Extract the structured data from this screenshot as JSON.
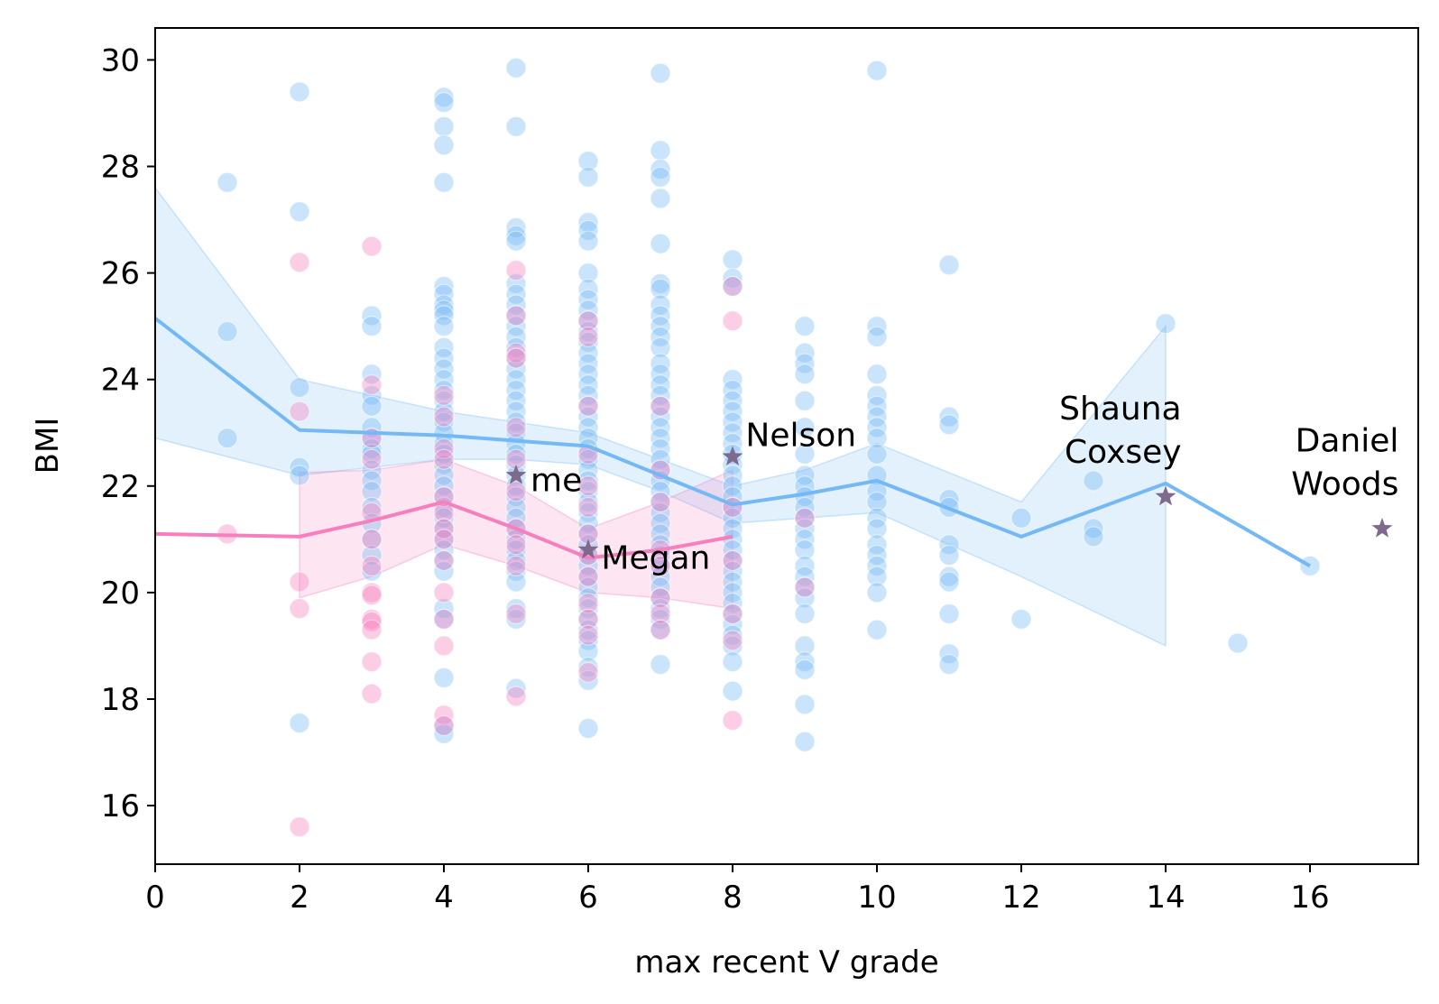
{
  "chart_data": {
    "type": "scatter",
    "xlabel": "max recent V grade",
    "ylabel": "BMI",
    "xlim": [
      0,
      17.5
    ],
    "ylim": [
      14.9,
      30.6
    ],
    "xticks": [
      0,
      2,
      4,
      6,
      8,
      10,
      12,
      14,
      16
    ],
    "yticks": [
      16,
      18,
      20,
      22,
      24,
      26,
      28,
      30
    ],
    "grid": false,
    "legend": "none",
    "colors": {
      "blue_series": "#74b9f5",
      "pink_series": "#f77fbd",
      "highlight_star": "#7e6a8c",
      "axis": "#000000"
    },
    "series": [
      {
        "color": "#74b9f5",
        "points": [
          {
            "x": 1,
            "y": [
              27.7,
              24.9,
              22.9
            ]
          },
          {
            "x": 2,
            "y": [
              29.4,
              27.15,
              23.85,
              22.35,
              22.2,
              17.55
            ]
          },
          {
            "x": 3,
            "y": [
              25.2,
              25.0,
              24.1,
              23.7,
              23.5,
              23.1,
              22.9,
              22.7,
              22.6,
              22.3,
              22.1,
              21.9,
              21.6,
              21.3,
              21.0,
              20.7,
              20.4
            ]
          },
          {
            "x": 4,
            "y": [
              29.3,
              29.2,
              28.75,
              28.4,
              27.7,
              25.75,
              25.6,
              25.4,
              25.3,
              25.2,
              25.0,
              24.6,
              24.4,
              24.2,
              24.0,
              23.8,
              23.6,
              23.4,
              23.2,
              23.0,
              22.8,
              22.6,
              22.4,
              22.2,
              22.0,
              21.8,
              21.6,
              21.4,
              21.2,
              21.0,
              20.8,
              20.6,
              20.4,
              19.7,
              19.5,
              18.4,
              17.5,
              17.35
            ]
          },
          {
            "x": 5,
            "y": [
              29.85,
              28.75,
              26.85,
              26.7,
              26.6,
              25.8,
              25.6,
              25.4,
              25.2,
              25.0,
              24.8,
              24.6,
              24.4,
              24.2,
              24.0,
              23.8,
              23.6,
              23.4,
              23.2,
              23.0,
              22.8,
              22.6,
              22.4,
              22.2,
              22.0,
              21.8,
              21.6,
              21.4,
              21.2,
              21.0,
              20.8,
              20.6,
              20.4,
              20.2,
              19.7,
              19.5,
              18.2
            ]
          },
          {
            "x": 6,
            "y": [
              28.1,
              27.8,
              26.95,
              26.8,
              26.6,
              26.0,
              25.7,
              25.5,
              25.3,
              25.1,
              24.9,
              24.7,
              24.5,
              24.3,
              24.1,
              23.9,
              23.7,
              23.5,
              23.3,
              23.1,
              22.9,
              22.7,
              22.5,
              22.3,
              22.1,
              21.9,
              21.7,
              21.5,
              21.3,
              21.1,
              20.9,
              20.7,
              20.5,
              20.3,
              20.1,
              19.9,
              19.7,
              19.5,
              19.3,
              19.1,
              18.9,
              18.6,
              18.35,
              17.45
            ]
          },
          {
            "x": 7,
            "y": [
              29.75,
              28.3,
              27.95,
              27.8,
              27.4,
              26.55,
              25.8,
              25.7,
              25.4,
              25.2,
              25.0,
              24.8,
              24.6,
              24.3,
              24.1,
              23.9,
              23.7,
              23.5,
              23.3,
              23.1,
              22.9,
              22.7,
              22.5,
              22.3,
              22.1,
              21.9,
              21.7,
              21.5,
              21.3,
              21.1,
              20.9,
              20.7,
              20.5,
              20.3,
              20.1,
              19.9,
              19.7,
              19.5,
              19.3,
              18.65
            ]
          },
          {
            "x": 8,
            "y": [
              26.25,
              25.9,
              25.75,
              24.0,
              23.8,
              23.6,
              23.4,
              23.2,
              23.0,
              22.8,
              22.6,
              22.4,
              22.2,
              22.0,
              21.8,
              21.6,
              21.4,
              21.2,
              21.0,
              20.8,
              20.6,
              20.4,
              20.2,
              20.0,
              19.8,
              19.6,
              19.4,
              19.2,
              19.0,
              18.7,
              18.15
            ]
          },
          {
            "x": 9,
            "y": [
              25.0,
              24.5,
              24.3,
              24.1,
              23.6,
              23.1,
              22.6,
              22.2,
              22.0,
              21.8,
              21.6,
              21.4,
              21.2,
              21.0,
              20.8,
              20.5,
              20.3,
              20.1,
              19.9,
              19.6,
              19.0,
              18.7,
              18.55,
              17.9,
              17.2
            ]
          },
          {
            "x": 10,
            "y": [
              29.8,
              25.0,
              24.8,
              24.1,
              23.7,
              23.5,
              23.3,
              23.1,
              22.9,
              22.6,
              22.2,
              21.9,
              21.7,
              21.4,
              21.2,
              20.9,
              20.7,
              20.5,
              20.3,
              20.0,
              19.3
            ]
          },
          {
            "x": 11,
            "y": [
              26.15,
              23.3,
              23.15,
              21.75,
              21.6,
              20.9,
              20.7,
              20.3,
              20.2,
              19.6,
              18.85,
              18.65
            ]
          },
          {
            "x": 12,
            "y": [
              21.4,
              19.5
            ]
          },
          {
            "x": 13,
            "y": [
              22.1,
              21.2,
              21.05
            ]
          },
          {
            "x": 14,
            "y": [
              25.05
            ]
          },
          {
            "x": 15,
            "y": [
              19.05
            ]
          },
          {
            "x": 16,
            "y": [
              20.5
            ]
          }
        ],
        "mean_line": {
          "x": [
            0,
            2,
            4,
            5,
            6,
            7,
            8,
            9,
            10,
            12,
            14,
            16
          ],
          "y": [
            25.15,
            23.05,
            22.95,
            22.85,
            22.75,
            22.2,
            21.65,
            21.85,
            22.1,
            21.05,
            22.05,
            20.5
          ]
        },
        "ci_band": {
          "x": [
            0,
            2,
            4,
            5,
            6,
            7,
            8,
            9,
            10,
            12,
            14
          ],
          "upper": [
            27.6,
            24.0,
            23.4,
            23.2,
            23.0,
            22.5,
            22.0,
            22.3,
            22.8,
            21.7,
            25.0
          ],
          "lower": [
            22.9,
            22.2,
            22.5,
            22.5,
            22.4,
            21.9,
            21.3,
            21.4,
            21.5,
            20.3,
            19.0
          ]
        }
      },
      {
        "color": "#f77fbd",
        "points": [
          {
            "x": 1,
            "y": [
              21.1
            ]
          },
          {
            "x": 2,
            "y": [
              26.2,
              23.4,
              20.2,
              19.7,
              15.6
            ]
          },
          {
            "x": 3,
            "y": [
              26.5,
              23.9,
              22.9,
              22.5,
              21.5,
              21.0,
              20.5,
              20.0,
              19.95,
              19.5,
              19.45,
              19.3,
              18.7,
              18.1
            ]
          },
          {
            "x": 4,
            "y": [
              23.7,
              23.3,
              22.7,
              22.5,
              21.8,
              21.5,
              21.2,
              21.0,
              20.6,
              20.0,
              19.5,
              19.0,
              17.7,
              17.5
            ]
          },
          {
            "x": 5,
            "y": [
              26.05,
              25.2,
              24.5,
              24.4,
              23.1,
              22.5,
              21.9,
              21.2,
              20.9,
              20.5,
              19.6,
              18.05
            ]
          },
          {
            "x": 6,
            "y": [
              25.1,
              24.8,
              23.5,
              22.6,
              22.0,
              21.6,
              21.1,
              20.7,
              20.3,
              19.8,
              19.5,
              19.2,
              18.5
            ]
          },
          {
            "x": 7,
            "y": [
              23.5,
              22.3,
              21.7,
              20.8,
              20.5,
              19.9,
              19.6,
              19.3
            ]
          },
          {
            "x": 8,
            "y": [
              25.75,
              25.1,
              21.6,
              20.6,
              19.6,
              19.1,
              17.6
            ]
          },
          {
            "x": 9,
            "y": [
              21.4,
              20.1
            ]
          }
        ],
        "mean_line": {
          "x": [
            0,
            2,
            3,
            4,
            5,
            6,
            7,
            8
          ],
          "y": [
            21.1,
            21.05,
            21.35,
            21.7,
            21.2,
            20.65,
            20.8,
            21.05
          ]
        },
        "ci_band": {
          "x": [
            2,
            3,
            4,
            5,
            6,
            7,
            8
          ],
          "upper": [
            22.25,
            22.3,
            22.5,
            22.0,
            21.2,
            21.7,
            22.3
          ],
          "lower": [
            19.9,
            20.3,
            20.9,
            20.5,
            20.0,
            19.9,
            19.7
          ]
        }
      }
    ],
    "highlights": [
      {
        "label": "me",
        "x": 5,
        "y": 22.2,
        "anchor": "start",
        "dx": 0.2,
        "dy": -0.3
      },
      {
        "label": "Megan",
        "x": 6,
        "y": 20.8,
        "anchor": "start",
        "dx": 0.18,
        "dy": -0.35
      },
      {
        "label": "Nelson",
        "x": 8,
        "y": 22.55,
        "anchor": "start",
        "dx": 0.18,
        "dy": 0.2
      },
      {
        "label": "Shauna\nCoxsey",
        "x": 14,
        "y": 21.8,
        "anchor": "end",
        "dx": 0.22,
        "dy": 1.45
      },
      {
        "label": "Daniel\nWoods",
        "x": 17,
        "y": 21.2,
        "anchor": "end",
        "dx": 0.23,
        "dy": 1.45
      }
    ]
  }
}
